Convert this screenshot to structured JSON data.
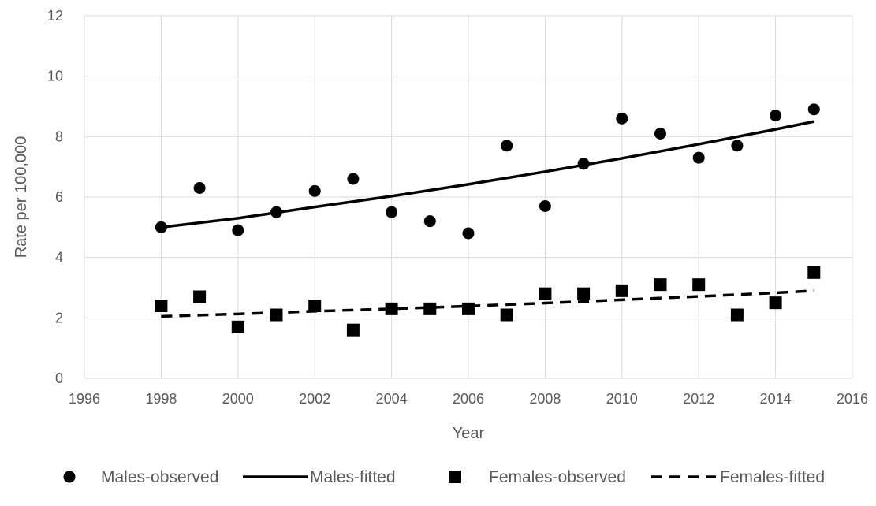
{
  "chart_data": {
    "type": "scatter",
    "title": "",
    "xlabel": "Year",
    "ylabel": "Rate per 100,000",
    "xlim": [
      1996,
      2016
    ],
    "ylim": [
      0,
      12
    ],
    "xticks": [
      1996,
      1998,
      2000,
      2002,
      2004,
      2006,
      2008,
      2010,
      2012,
      2014,
      2016
    ],
    "yticks": [
      0,
      2,
      4,
      6,
      8,
      10,
      12
    ],
    "grid": true,
    "legend_position": "bottom",
    "series": [
      {
        "name": "Males-observed",
        "kind": "markers",
        "marker": "circle",
        "color": "#000000",
        "x": [
          1998,
          1999,
          2000,
          2001,
          2002,
          2003,
          2004,
          2005,
          2006,
          2007,
          2008,
          2009,
          2010,
          2011,
          2012,
          2013,
          2014,
          2015
        ],
        "y": [
          5.0,
          6.3,
          4.9,
          5.5,
          6.2,
          6.6,
          5.5,
          5.2,
          4.8,
          7.7,
          5.7,
          7.1,
          8.6,
          8.1,
          7.3,
          7.7,
          8.7,
          8.9
        ]
      },
      {
        "name": "Males-fitted",
        "kind": "line",
        "dash": "solid",
        "color": "#000000",
        "x": [
          1998,
          2000,
          2002,
          2004,
          2006,
          2008,
          2010,
          2012,
          2014,
          2015
        ],
        "y": [
          5.0,
          5.3,
          5.67,
          6.03,
          6.42,
          6.84,
          7.28,
          7.75,
          8.24,
          8.5
        ]
      },
      {
        "name": "Females-observed",
        "kind": "markers",
        "marker": "square",
        "color": "#000000",
        "x": [
          1998,
          1999,
          2000,
          2001,
          2002,
          2003,
          2004,
          2005,
          2006,
          2007,
          2008,
          2009,
          2010,
          2011,
          2012,
          2013,
          2014,
          2015
        ],
        "y": [
          2.4,
          2.7,
          1.7,
          2.1,
          2.4,
          1.6,
          2.3,
          2.3,
          2.3,
          2.1,
          2.8,
          2.8,
          2.9,
          3.1,
          3.1,
          2.1,
          2.5,
          3.5
        ]
      },
      {
        "name": "Females-fitted",
        "kind": "line",
        "dash": "dashed",
        "color": "#000000",
        "x": [
          1998,
          2000,
          2002,
          2004,
          2006,
          2008,
          2010,
          2012,
          2014,
          2015
        ],
        "y": [
          2.05,
          2.13,
          2.22,
          2.3,
          2.39,
          2.49,
          2.6,
          2.71,
          2.83,
          2.9
        ]
      }
    ]
  }
}
